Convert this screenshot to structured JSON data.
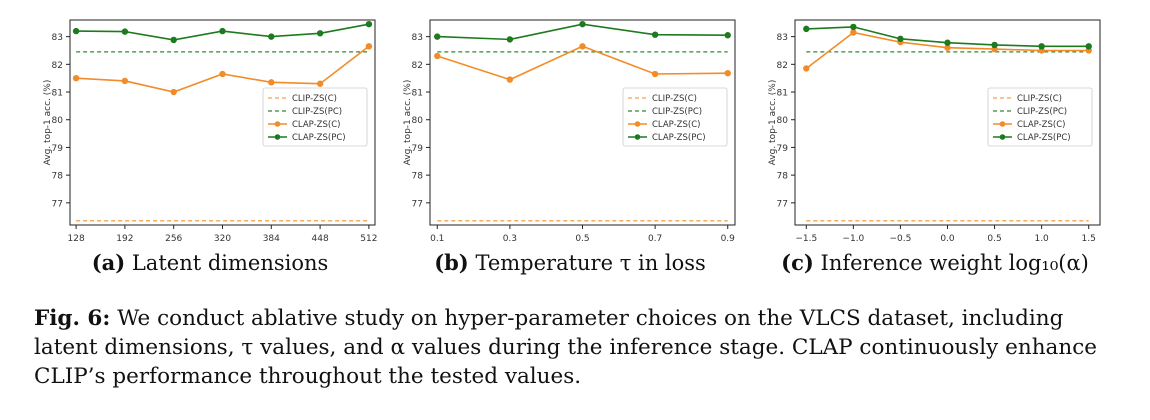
{
  "chart_data": [
    {
      "type": "line",
      "sub_label": "(a)",
      "sub_title": "Latent dimensions",
      "ylabel": "Avg. top-1 acc. (%)",
      "xlabel": "",
      "x": [
        128,
        192,
        256,
        320,
        384,
        448,
        512
      ],
      "x_ticks": [
        "128",
        "192",
        "256",
        "320",
        "384",
        "448",
        "512"
      ],
      "y_ticks": [
        "77",
        "78",
        "79",
        "80",
        "81",
        "82",
        "83"
      ],
      "xlim": [
        120,
        520
      ],
      "ylim": [
        76.2,
        83.6
      ],
      "legend": "center-right",
      "grid": false,
      "series": [
        {
          "name": "CLIP-ZS(C)",
          "style": "dashed",
          "color": "#f5a04b",
          "values": [
            76.35,
            76.35,
            76.35,
            76.35,
            76.35,
            76.35,
            76.35
          ]
        },
        {
          "name": "CLIP-ZS(PC)",
          "style": "dashed",
          "color": "#2e8b2e",
          "values": [
            82.45,
            82.45,
            82.45,
            82.45,
            82.45,
            82.45,
            82.45
          ]
        },
        {
          "name": "CLAP-ZS(C)",
          "style": "line-marker",
          "color": "#f28c28",
          "values": [
            81.5,
            81.4,
            81.0,
            81.65,
            81.35,
            81.3,
            82.65
          ]
        },
        {
          "name": "CLAP-ZS(PC)",
          "style": "line-marker",
          "color": "#1e7a1e",
          "values": [
            83.2,
            83.18,
            82.88,
            83.2,
            83.0,
            83.12,
            83.45
          ]
        }
      ]
    },
    {
      "type": "line",
      "sub_label": "(b)",
      "sub_title": "Temperature τ in loss",
      "ylabel": "Avg. top-1 acc. (%)",
      "xlabel": "",
      "x": [
        0.1,
        0.3,
        0.5,
        0.7,
        0.9
      ],
      "x_ticks": [
        "0.1",
        "0.3",
        "0.5",
        "0.7",
        "0.9"
      ],
      "y_ticks": [
        "77",
        "78",
        "79",
        "80",
        "81",
        "82",
        "83"
      ],
      "xlim": [
        0.08,
        0.92
      ],
      "ylim": [
        76.2,
        83.6
      ],
      "legend": "center-right",
      "grid": false,
      "series": [
        {
          "name": "CLIP-ZS(C)",
          "style": "dashed",
          "color": "#f5a04b",
          "values": [
            76.35,
            76.35,
            76.35,
            76.35,
            76.35
          ]
        },
        {
          "name": "CLIP-ZS(PC)",
          "style": "dashed",
          "color": "#2e8b2e",
          "values": [
            82.45,
            82.45,
            82.45,
            82.45,
            82.45
          ]
        },
        {
          "name": "CLAP-ZS(C)",
          "style": "line-marker",
          "color": "#f28c28",
          "values": [
            82.3,
            81.45,
            82.65,
            81.65,
            81.68
          ]
        },
        {
          "name": "CLAP-ZS(PC)",
          "style": "line-marker",
          "color": "#1e7a1e",
          "values": [
            83.0,
            82.9,
            83.45,
            83.07,
            83.05
          ]
        }
      ]
    },
    {
      "type": "line",
      "sub_label": "(c)",
      "sub_title": "Inference weight log₁₀(α)",
      "ylabel": "Avg. top-1 acc. (%)",
      "xlabel": "",
      "x": [
        -1.5,
        -1.0,
        -0.5,
        0.0,
        0.5,
        1.0,
        1.5
      ],
      "x_ticks": [
        "−1.5",
        "−1.0",
        "−0.5",
        "0.0",
        "0.5",
        "1.0",
        "1.5"
      ],
      "y_ticks": [
        "77",
        "78",
        "79",
        "80",
        "81",
        "82",
        "83"
      ],
      "xlim": [
        -1.62,
        1.62
      ],
      "ylim": [
        76.2,
        83.6
      ],
      "legend": "center-right",
      "grid": false,
      "series": [
        {
          "name": "CLIP-ZS(C)",
          "style": "dashed",
          "color": "#f5a04b",
          "values": [
            76.35,
            76.35,
            76.35,
            76.35,
            76.35,
            76.35,
            76.35
          ]
        },
        {
          "name": "CLIP-ZS(PC)",
          "style": "dashed",
          "color": "#2e8b2e",
          "values": [
            82.45,
            82.45,
            82.45,
            82.45,
            82.45,
            82.45,
            82.45
          ]
        },
        {
          "name": "CLAP-ZS(C)",
          "style": "line-marker",
          "color": "#f28c28",
          "values": [
            81.85,
            83.15,
            82.8,
            82.6,
            82.55,
            82.5,
            82.5
          ]
        },
        {
          "name": "CLAP-ZS(PC)",
          "style": "line-marker",
          "color": "#1e7a1e",
          "values": [
            83.28,
            83.35,
            82.92,
            82.78,
            82.7,
            82.65,
            82.65
          ]
        }
      ]
    }
  ],
  "caption": {
    "label": "Fig. 6:",
    "text": "We conduct ablative study on hyper-parameter choices on the VLCS dataset, including latent dimensions, τ values, and α values during the inference stage. CLAP continuously enhance CLIP’s performance throughout the tested values."
  }
}
